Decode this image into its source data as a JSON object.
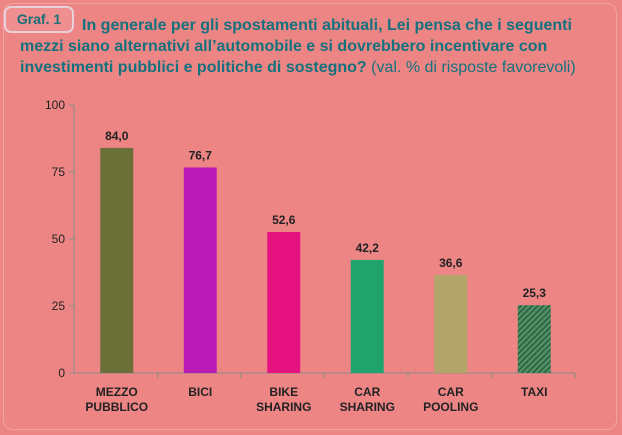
{
  "badge": "Graf. 1",
  "title": {
    "line1": "In generale per gli spostamenti abituali, Lei pensa che i seguenti",
    "line2": "mezzi  siano alternativi all’automobile e si dovrebbero incentivare con",
    "line3": "investimenti pubblici e politiche di sostegno?",
    "note": "(val. % di risposte favorevoli)"
  },
  "chart_data": {
    "type": "bar",
    "categories": [
      [
        "MEZZO",
        "PUBBLICO"
      ],
      [
        "BICI"
      ],
      [
        "BIKE",
        "SHARING"
      ],
      [
        "CAR",
        "SHARING"
      ],
      [
        "CAR",
        "POOLING"
      ],
      [
        "TAXI"
      ]
    ],
    "values": [
      84.0,
      76.7,
      52.6,
      42.2,
      36.6,
      25.3
    ],
    "value_labels": [
      "84,0",
      "76,7",
      "52,6",
      "42,2",
      "36,6",
      "25,3"
    ],
    "colors": [
      "#6b6f38",
      "#bb1ab8",
      "#e6127f",
      "#20a46e",
      "#b2a56b",
      "#2e6848"
    ],
    "bar_fill_patterns": [
      "solid",
      "solid",
      "solid",
      "solid",
      "solid",
      "diagonal-hatch"
    ],
    "ylim": [
      0,
      100
    ],
    "yticks": [
      0,
      25,
      50,
      75,
      100
    ],
    "grid": false,
    "legend": "none",
    "xlabel": "",
    "ylabel": ""
  }
}
